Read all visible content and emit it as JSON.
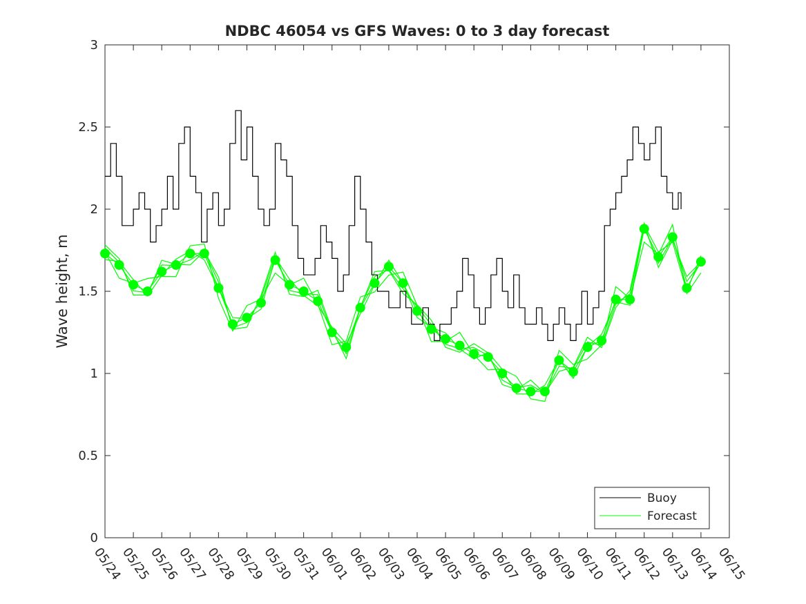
{
  "chart_data": {
    "type": "line",
    "title": "NDBC 46054 vs GFS Waves: 0 to 3 day forecast",
    "xlabel": "",
    "ylabel": "Wave height, m",
    "xlim": [
      "05/24",
      "06/15"
    ],
    "ylim": [
      0,
      3
    ],
    "x_ticks": [
      "05/24",
      "05/25",
      "05/26",
      "05/27",
      "05/28",
      "05/29",
      "05/30",
      "05/31",
      "06/01",
      "06/02",
      "06/03",
      "06/04",
      "06/05",
      "06/06",
      "06/07",
      "06/08",
      "06/09",
      "06/10",
      "06/11",
      "06/12",
      "06/13",
      "06/14",
      "06/15"
    ],
    "y_ticks": [
      "0",
      "0.5",
      "1",
      "1.5",
      "2",
      "2.5",
      "3"
    ],
    "grid": false,
    "legend": {
      "placement": "bottom-right",
      "entries": [
        "Buoy",
        "Forecast"
      ]
    },
    "colors": {
      "buoy": "#000000",
      "forecast": "#00ff00"
    },
    "series": [
      {
        "name": "Buoy",
        "x_day": [
          0,
          0.2,
          0.4,
          0.6,
          0.8,
          1.0,
          1.2,
          1.4,
          1.6,
          1.8,
          2.0,
          2.2,
          2.4,
          2.6,
          2.8,
          3.0,
          3.2,
          3.4,
          3.6,
          3.8,
          4.0,
          4.2,
          4.4,
          4.6,
          4.8,
          5.0,
          5.2,
          5.4,
          5.6,
          5.8,
          6.0,
          6.2,
          6.4,
          6.6,
          6.8,
          7.0,
          7.2,
          7.4,
          7.6,
          7.8,
          8.0,
          8.2,
          8.4,
          8.6,
          8.8,
          9.0,
          9.2,
          9.4,
          9.6,
          9.8,
          10.0,
          10.2,
          10.4,
          10.6,
          10.8,
          11.0,
          11.2,
          11.4,
          11.6,
          11.8,
          12.0,
          12.2,
          12.4,
          12.6,
          12.8,
          13.0,
          13.2,
          13.4,
          13.6,
          13.8,
          14.0,
          14.2,
          14.4,
          14.6,
          14.8,
          15.0,
          15.2,
          15.4,
          15.6,
          15.8,
          16.0,
          16.2,
          16.4,
          16.6,
          16.8,
          17.0,
          17.2,
          17.4,
          17.6,
          17.8,
          18.0,
          18.2,
          18.4,
          18.6,
          18.8,
          19.0,
          19.2,
          19.4,
          19.6,
          19.8,
          20.0,
          20.2,
          20.3
        ],
        "values": [
          2.2,
          2.4,
          2.2,
          1.9,
          1.9,
          2.0,
          2.1,
          2.0,
          1.8,
          1.9,
          2.0,
          2.2,
          2.0,
          2.4,
          2.5,
          2.2,
          2.1,
          1.8,
          2.0,
          2.1,
          1.9,
          2.0,
          2.4,
          2.6,
          2.3,
          2.5,
          2.2,
          2.0,
          1.9,
          2.0,
          2.4,
          2.3,
          2.2,
          1.9,
          1.7,
          1.6,
          1.6,
          1.7,
          1.9,
          1.8,
          1.7,
          1.5,
          1.6,
          1.9,
          2.2,
          2.0,
          1.8,
          1.6,
          1.5,
          1.5,
          1.4,
          1.4,
          1.5,
          1.4,
          1.3,
          1.3,
          1.4,
          1.3,
          1.2,
          1.3,
          1.3,
          1.4,
          1.5,
          1.7,
          1.6,
          1.4,
          1.3,
          1.4,
          1.6,
          1.7,
          1.5,
          1.4,
          1.6,
          1.4,
          1.3,
          1.3,
          1.4,
          1.3,
          1.2,
          1.3,
          1.4,
          1.3,
          1.2,
          1.3,
          1.5,
          1.3,
          1.4,
          1.5,
          1.9,
          2.0,
          2.1,
          2.2,
          2.3,
          2.5,
          2.4,
          2.3,
          2.4,
          2.5,
          2.2,
          2.1,
          2.0,
          2.1,
          2.0
        ]
      },
      {
        "name": "Forecast",
        "x_day": [
          0,
          0.5,
          1.0,
          1.5,
          2.0,
          2.5,
          3.0,
          3.5,
          4.0,
          4.5,
          5.0,
          5.5,
          6.0,
          6.5,
          7.0,
          7.5,
          8.0,
          8.5,
          9.0,
          9.5,
          10.0,
          10.5,
          11.0,
          11.5,
          12.0,
          12.5,
          13.0,
          13.5,
          14.0,
          14.5,
          15.0,
          15.5,
          16.0,
          16.5,
          17.0,
          17.5,
          18.0,
          18.5,
          19.0,
          19.5,
          20.0,
          20.5,
          21.0
        ],
        "values": [
          1.73,
          1.66,
          1.54,
          1.5,
          1.62,
          1.66,
          1.73,
          1.73,
          1.52,
          1.3,
          1.34,
          1.43,
          1.69,
          1.54,
          1.5,
          1.44,
          1.25,
          1.16,
          1.4,
          1.55,
          1.65,
          1.55,
          1.38,
          1.27,
          1.21,
          1.17,
          1.12,
          1.1,
          1.0,
          0.91,
          0.89,
          0.89,
          1.08,
          1.01,
          1.16,
          1.2,
          1.45,
          1.45,
          1.88,
          1.71,
          1.83,
          1.52,
          1.68
        ]
      }
    ]
  }
}
